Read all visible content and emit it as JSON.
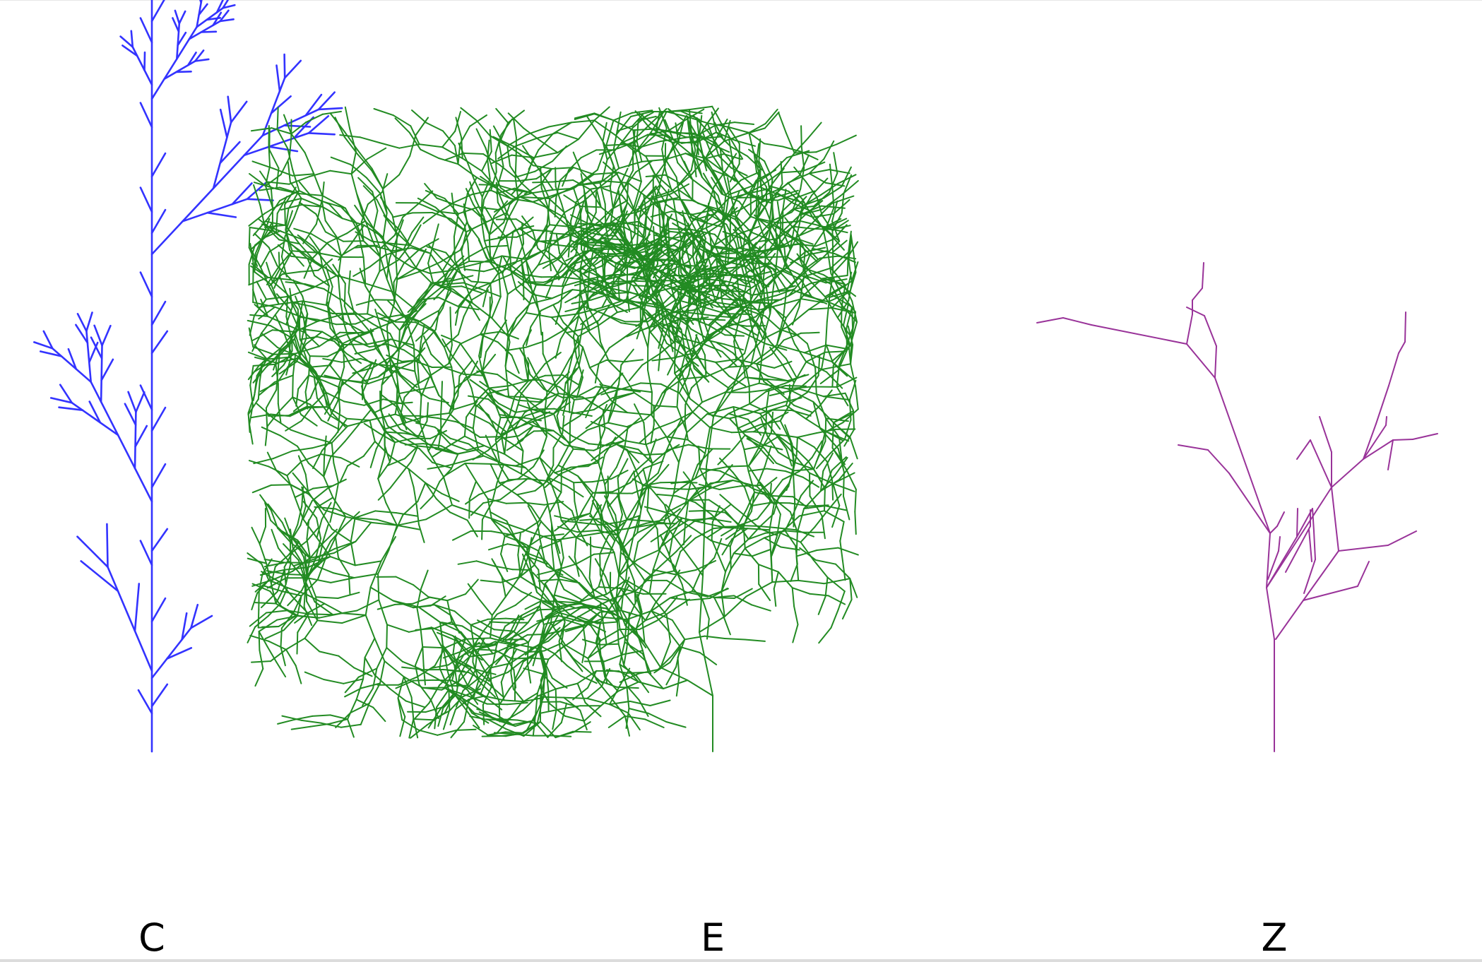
{
  "figure": {
    "plants": [
      {
        "id": "C",
        "label": "C",
        "color": "#3333ff",
        "kind": "straight-stem fern"
      },
      {
        "id": "E",
        "label": "E",
        "color": "#228b22",
        "kind": "tangled bush"
      },
      {
        "id": "Z",
        "label": "Z",
        "color": "#993399",
        "kind": "sparse tree"
      }
    ]
  }
}
